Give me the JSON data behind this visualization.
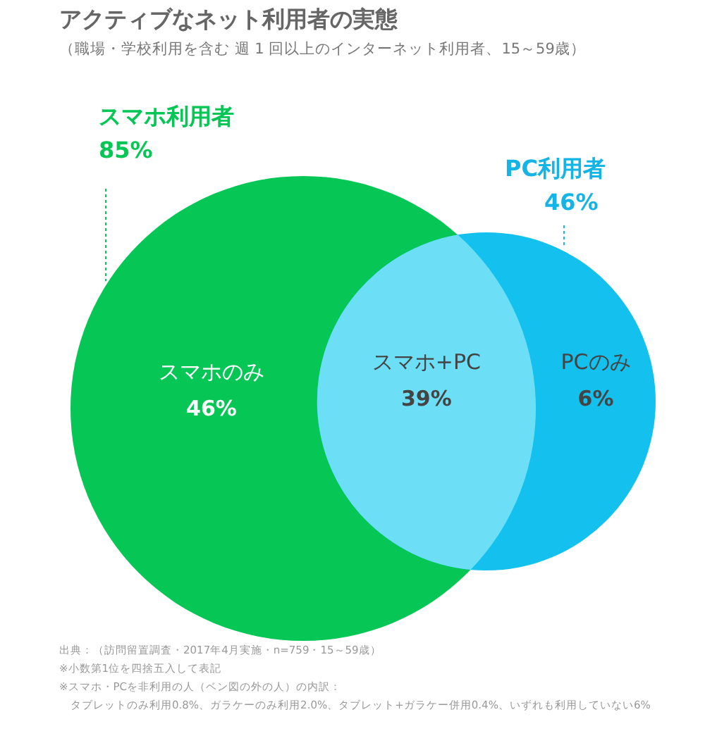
{
  "chart_data": {
    "type": "other",
    "title": "アクティブなネット利用者の実態",
    "subtitle": "（職場・学校利用を含む 週 1 回以上のインターネット利用者、15～59歳）",
    "categories": [
      "スマホのみ",
      "スマホ+PC",
      "PCのみ"
    ],
    "values": [
      46,
      39,
      6
    ],
    "value_labels": [
      "46%",
      "39%",
      "6%"
    ],
    "colors": [
      "#06c755",
      "#6cdff6",
      "#14c0ee"
    ],
    "annotations": [
      "スマホ利用者",
      "85%",
      "PC利用者",
      "46%",
      "出典：（訪問留置調査・2017年4月実施・n=759・15～59歳）",
      "※小数第1位を四捨五入して表記",
      "※スマホ・PCを非利用の人（ベン図の外の人）の内訳：",
      "タブレットのみ利用0.8%、ガラケーのみ利用2.0%、タブレット+ガラケー併用0.4%、いずれも利用していない6%"
    ]
  }
}
